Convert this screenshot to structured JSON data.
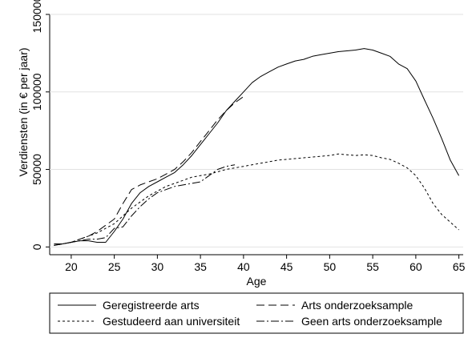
{
  "chart_data": {
    "type": "line",
    "xlabel": "Age",
    "ylabel": "Verdiensten (in € per jaar)",
    "xlim": [
      17.5,
      65.5
    ],
    "ylim": [
      -5000,
      150000
    ],
    "xticks": [
      20,
      25,
      30,
      35,
      40,
      45,
      50,
      55,
      60,
      65
    ],
    "xtick_labels": [
      "20",
      "25",
      "30",
      "35",
      "40",
      "45",
      "50",
      "55",
      "60",
      "65"
    ],
    "yticks": [
      0,
      50000,
      100000,
      150000
    ],
    "ytick_labels": [
      "0",
      "50000",
      "100000",
      "150000"
    ],
    "grid": "horizontal",
    "legend_position": "bottom",
    "series": [
      {
        "name": "Geregistreerde arts",
        "style": "solid",
        "x": [
          18,
          19,
          20,
          21,
          22,
          23,
          24,
          25,
          26,
          27,
          28,
          29,
          30,
          31,
          32,
          33,
          34,
          35,
          36,
          37,
          38,
          39,
          40,
          41,
          42,
          43,
          44,
          45,
          46,
          47,
          48,
          49,
          50,
          51,
          52,
          53,
          54,
          55,
          56,
          57,
          58,
          59,
          60,
          61,
          62,
          63,
          64,
          65
        ],
        "y": [
          1000,
          2000,
          3000,
          4000,
          4000,
          3000,
          3000,
          10000,
          18000,
          28000,
          35000,
          39000,
          42000,
          45000,
          48000,
          53000,
          59000,
          66000,
          73000,
          80000,
          88000,
          94000,
          100000,
          106000,
          110000,
          113000,
          116000,
          118000,
          120000,
          121000,
          123000,
          124000,
          125000,
          126000,
          126500,
          127000,
          128000,
          127000,
          125000,
          123000,
          118000,
          115000,
          107000,
          95000,
          83000,
          70000,
          56000,
          46000
        ]
      },
      {
        "name": "Arts onderzoeksample",
        "style": "dashed",
        "x": [
          18,
          19,
          20,
          21,
          22,
          23,
          24,
          25,
          26,
          27,
          28,
          29,
          30,
          31,
          32,
          33,
          34,
          35,
          36,
          37,
          38,
          39,
          40
        ],
        "y": [
          1000,
          2000,
          3000,
          5000,
          7000,
          10000,
          14000,
          18000,
          28000,
          37000,
          40000,
          42000,
          44000,
          47000,
          50000,
          55000,
          61000,
          68000,
          75000,
          82000,
          88000,
          93000,
          97000
        ]
      },
      {
        "name": "Gestudeerd aan universiteit",
        "style": "dotted",
        "x": [
          18,
          19,
          20,
          21,
          22,
          23,
          24,
          25,
          26,
          27,
          28,
          29,
          30,
          31,
          32,
          33,
          34,
          35,
          36,
          37,
          38,
          39,
          40,
          41,
          42,
          43,
          44,
          45,
          46,
          47,
          48,
          49,
          50,
          51,
          52,
          53,
          54,
          55,
          56,
          57,
          58,
          59,
          60,
          61,
          62,
          63,
          64,
          65
        ],
        "y": [
          1000,
          2000,
          3000,
          5000,
          7000,
          9000,
          12000,
          15000,
          20000,
          25000,
          29000,
          33000,
          36000,
          39000,
          41000,
          43000,
          45000,
          46000,
          47000,
          48500,
          50000,
          51000,
          52000,
          53000,
          54000,
          55000,
          56000,
          56500,
          57000,
          57500,
          58000,
          58500,
          59000,
          60000,
          59500,
          59000,
          59500,
          59000,
          57500,
          56500,
          54000,
          51000,
          46000,
          38000,
          28000,
          21000,
          16000,
          11000
        ]
      },
      {
        "name": "Geen arts onderzoeksample",
        "style": "dashdot",
        "x": [
          18,
          19,
          20,
          21,
          22,
          23,
          24,
          25,
          26,
          27,
          28,
          29,
          30,
          31,
          32,
          33,
          34,
          35,
          36,
          37,
          38,
          39
        ],
        "y": [
          2000,
          2000,
          3000,
          4000,
          5000,
          5000,
          6000,
          12000,
          13000,
          20000,
          26000,
          31000,
          35000,
          37000,
          39000,
          40000,
          41000,
          42000,
          46000,
          50000,
          52000,
          53000
        ]
      }
    ]
  }
}
